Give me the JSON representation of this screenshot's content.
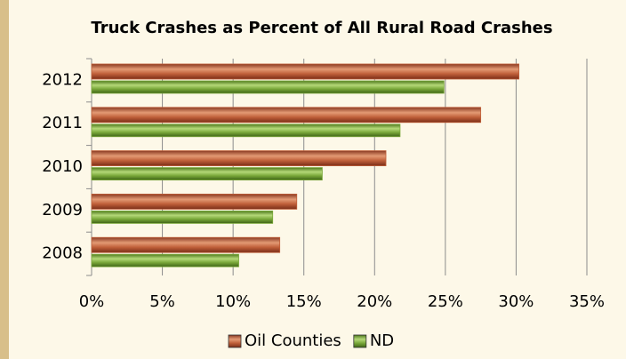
{
  "chart_data": {
    "type": "hbar",
    "title": "Truck Crashes as Percent of All Rural Road Crashes",
    "categories": [
      "2012",
      "2011",
      "2010",
      "2009",
      "2008"
    ],
    "series": [
      {
        "name": "Oil Counties",
        "color": "#c0603a",
        "values": [
          30.2,
          27.5,
          20.8,
          14.5,
          13.3
        ]
      },
      {
        "name": "ND",
        "color": "#7aa83a",
        "values": [
          24.9,
          21.8,
          16.3,
          12.8,
          10.4
        ]
      }
    ],
    "xlim": [
      0,
      35
    ],
    "xticks": [
      {
        "value": 0,
        "label": "0%"
      },
      {
        "value": 5,
        "label": "5%"
      },
      {
        "value": 10,
        "label": "10%"
      },
      {
        "value": 15,
        "label": "15%"
      },
      {
        "value": 20,
        "label": "20%"
      },
      {
        "value": 25,
        "label": "25%"
      },
      {
        "value": 30,
        "label": "30%"
      },
      {
        "value": 35,
        "label": "35%"
      }
    ],
    "grid": true,
    "legend": "bottom"
  }
}
